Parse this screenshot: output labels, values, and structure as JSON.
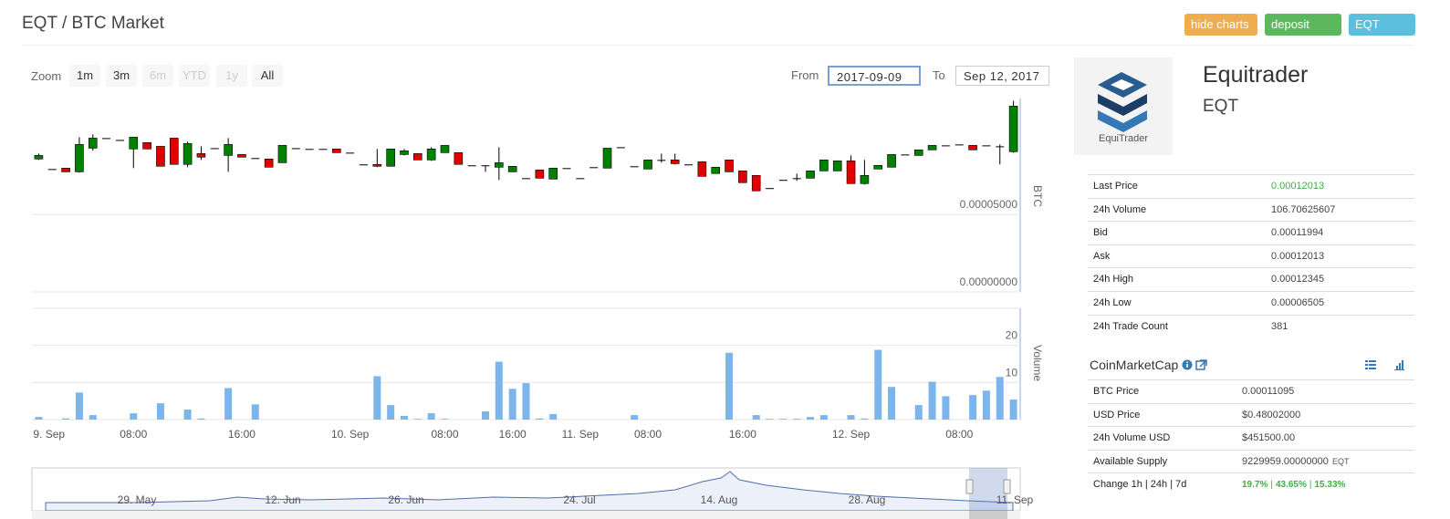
{
  "header": {
    "title": "EQT / BTC Market",
    "buttons": [
      "hide charts",
      "deposit EQT",
      "EQT peers"
    ]
  },
  "chart_controls": {
    "zoom_label": "Zoom",
    "zoom_buttons": [
      "1m",
      "3m",
      "6m",
      "YTD",
      "1y",
      "All"
    ],
    "from_label": "From",
    "from_value": "2017-09-09",
    "to_label": "To",
    "to_value": "Sep 12, 2017"
  },
  "chart_data": [
    {
      "type": "candlestick",
      "y_axis_title": "BTC",
      "up_color": "#008000",
      "down_color": "#e00000",
      "ylim": [
        0,
        0.000125
      ],
      "yticks": [
        {
          "value": 0,
          "label": "0.00000000"
        },
        {
          "value": 5e-05,
          "label": "0.00005000"
        }
      ],
      "open": [
        8.59e-05,
        7.94e-05,
        8e-05,
        7.76e-05,
        9.29e-05,
        9.94e-05,
        9.82e-05,
        9.24e-05,
        9.65e-05,
        9.41e-05,
        9.94e-05,
        8.24e-05,
        8.94e-05,
        9.29e-05,
        8.82e-05,
        8.88e-05,
        8.65e-05,
        8.59e-05,
        8.35e-05,
        9.29e-05,
        9.24e-05,
        9.24e-05,
        9.24e-05,
        9e-05,
        8.24e-05,
        8.24e-05,
        8.12e-05,
        8.88e-05,
        8.94e-05,
        8.53e-05,
        9e-05,
        9e-05,
        8.18e-05,
        8.18e-05,
        8.06e-05,
        7.76e-05,
        7.35e-05,
        7.88e-05,
        7.29e-05,
        8e-05,
        7.35e-05,
        8.06e-05,
        8e-05,
        9.35e-05,
        8.12e-05,
        7.94e-05,
        8.53e-05,
        8.53e-05,
        8.24e-05,
        8.41e-05,
        7.65e-05,
        8.53e-05,
        7.82e-05,
        7.53e-05,
        6.71e-05,
        7.24e-05,
        7.35e-05,
        7.35e-05,
        7.82e-05,
        7.82e-05,
        8.47e-05,
        7e-05,
        7.94e-05,
        8.06e-05,
        8.88e-05,
        8.82e-05,
        9.18e-05,
        9.47e-05,
        9.53e-05,
        9.47e-05,
        9.47e-05,
        9.41e-05,
        9.06e-05
      ],
      "high": [
        8.94e-05,
        7.94e-05,
        8e-05,
        0.0001,
        0.0001018,
        9.94e-05,
        9.82e-05,
        0.0001,
        9.65e-05,
        9.41e-05,
        9.94e-05,
        9.71e-05,
        9.41e-05,
        9.29e-05,
        9.94e-05,
        8.88e-05,
        8.65e-05,
        8.59e-05,
        9.47e-05,
        9.29e-05,
        9.24e-05,
        9.24e-05,
        9.24e-05,
        9e-05,
        8.24e-05,
        9.24e-05,
        9.24e-05,
        9.24e-05,
        8.94e-05,
        9.35e-05,
        9.47e-05,
        9e-05,
        8.18e-05,
        8.18e-05,
        9.35e-05,
        8.12e-05,
        7.35e-05,
        7.88e-05,
        8e-05,
        8e-05,
        7.35e-05,
        8.06e-05,
        9.29e-05,
        9.35e-05,
        8.12e-05,
        8.53e-05,
        8.94e-05,
        8.94e-05,
        8.24e-05,
        8.41e-05,
        8.06e-05,
        8.53e-05,
        7.82e-05,
        7.53e-05,
        6.71e-05,
        7.24e-05,
        7.65e-05,
        7.82e-05,
        8.53e-05,
        8.47e-05,
        8.82e-05,
        8.53e-05,
        8.18e-05,
        8.88e-05,
        8.88e-05,
        9.18e-05,
        9.47e-05,
        9.47e-05,
        9.53e-05,
        9.47e-05,
        9.47e-05,
        9.53e-05,
        0.0001235
      ],
      "low": [
        8.53e-05,
        7.94e-05,
        7.76e-05,
        7.71e-05,
        9.12e-05,
        9.94e-05,
        9.82e-05,
        8e-05,
        9.24e-05,
        8.12e-05,
        8.24e-05,
        8.06e-05,
        8.53e-05,
        9.29e-05,
        7.76e-05,
        8.71e-05,
        8.65e-05,
        8.06e-05,
        8.35e-05,
        9.29e-05,
        9.24e-05,
        9.24e-05,
        9e-05,
        9e-05,
        8.24e-05,
        8.06e-05,
        8.12e-05,
        8.82e-05,
        8.53e-05,
        8.47e-05,
        9e-05,
        8.24e-05,
        8.18e-05,
        7.76e-05,
        7.24e-05,
        7.76e-05,
        7.35e-05,
        7.35e-05,
        7.29e-05,
        8e-05,
        7.35e-05,
        8.06e-05,
        8e-05,
        9.35e-05,
        8.12e-05,
        7.94e-05,
        8.35e-05,
        8.24e-05,
        8.24e-05,
        7.47e-05,
        7.65e-05,
        7.76e-05,
        7.06e-05,
        6.53e-05,
        6.71e-05,
        7.24e-05,
        7.18e-05,
        7.35e-05,
        7.82e-05,
        7.82e-05,
        7e-05,
        6.94e-05,
        7.94e-05,
        8.06e-05,
        8.88e-05,
        8.82e-05,
        9.18e-05,
        9.47e-05,
        9.53e-05,
        9.18e-05,
        9.47e-05,
        8.24e-05,
        9e-05
      ],
      "close": [
        8.82e-05,
        7.94e-05,
        7.76e-05,
        9.53e-05,
        9.94e-05,
        9.94e-05,
        9.82e-05,
        0.0001,
        9.24e-05,
        8.12e-05,
        8.24e-05,
        9.59e-05,
        8.71e-05,
        9.29e-05,
        9.53e-05,
        8.71e-05,
        8.65e-05,
        8.06e-05,
        9.47e-05,
        9.29e-05,
        9.24e-05,
        9.24e-05,
        9e-05,
        9e-05,
        8.24e-05,
        8.12e-05,
        9.24e-05,
        9.12e-05,
        8.53e-05,
        9.24e-05,
        9.47e-05,
        8.24e-05,
        8.18e-05,
        8.18e-05,
        8.35e-05,
        8.12e-05,
        7.35e-05,
        7.35e-05,
        8e-05,
        8e-05,
        7.35e-05,
        8.06e-05,
        9.29e-05,
        9.35e-05,
        8.12e-05,
        8.53e-05,
        8.53e-05,
        8.29e-05,
        8.24e-05,
        7.47e-05,
        8.06e-05,
        7.76e-05,
        7.06e-05,
        6.53e-05,
        6.71e-05,
        7.24e-05,
        7.35e-05,
        7.82e-05,
        8.53e-05,
        8.47e-05,
        7e-05,
        7.53e-05,
        8.18e-05,
        8.88e-05,
        8.88e-05,
        9.18e-05,
        9.47e-05,
        9.47e-05,
        9.53e-05,
        9.18e-05,
        9.47e-05,
        9.41e-05,
        0.0001201
      ]
    },
    {
      "type": "bar",
      "y_axis_title": "Volume",
      "color": "#7cb5ec",
      "categories": [
        "9. Sep",
        null,
        null,
        null,
        null,
        null,
        null,
        "08:00",
        null,
        null,
        null,
        null,
        null,
        null,
        null,
        "16:00",
        null,
        null,
        null,
        null,
        null,
        null,
        null,
        "10. Sep",
        null,
        null,
        null,
        null,
        null,
        null,
        "08:00",
        null,
        null,
        null,
        null,
        "16:00",
        null,
        null,
        null,
        null,
        "11. Sep",
        null,
        null,
        null,
        null,
        "08:00",
        null,
        null,
        null,
        null,
        null,
        null,
        "16:00",
        null,
        null,
        null,
        null,
        null,
        null,
        null,
        "12. Sep",
        null,
        null,
        null,
        null,
        null,
        null,
        null,
        "08:00",
        null,
        null,
        null,
        null
      ],
      "values": [
        0.7,
        0,
        0.3,
        7.3,
        1.2,
        0,
        0,
        1.7,
        0,
        4.4,
        0,
        2.7,
        0.3,
        0,
        8.5,
        0,
        4.1,
        0,
        0,
        0,
        0,
        0,
        0,
        0,
        0,
        11.7,
        3.9,
        1,
        0.2,
        1.7,
        0.2,
        0,
        0,
        2.2,
        15.6,
        8.3,
        9.8,
        0.3,
        1.5,
        0,
        0,
        0,
        0,
        0,
        1.2,
        0,
        0,
        0,
        0,
        0,
        0,
        18,
        0,
        1.2,
        0.2,
        0.2,
        0.2,
        0.7,
        1.2,
        0,
        1.2,
        0.3,
        18.8,
        8.8,
        0,
        3.9,
        10.2,
        6.3,
        0,
        6.6,
        7.8,
        11.5,
        5.4
      ],
      "ylim": [
        0,
        30
      ],
      "yticks": [
        0,
        10,
        20
      ]
    }
  ],
  "navigator": {
    "xtick_labels": [
      "29. May",
      "12. Jun",
      "26. Jun",
      "24. Jul",
      "14. Aug",
      "28. Aug",
      "11. Sep"
    ]
  },
  "coin": {
    "logo_text": "EquiTrader",
    "name": "Equitrader",
    "symbol": "EQT"
  },
  "market_stats": {
    "rows": [
      {
        "label": "Last Price",
        "value": "0.00012013"
      },
      {
        "label": "24h Volume",
        "value": "106.70625607"
      },
      {
        "label": "Bid",
        "value": "0.00011994"
      },
      {
        "label": "Ask",
        "value": "0.00012013"
      },
      {
        "label": "24h High",
        "value": "0.00012345"
      },
      {
        "label": "24h Low",
        "value": "0.00006505"
      },
      {
        "label": "24h Trade Count",
        "value": "381"
      }
    ]
  },
  "coinmarketcap": {
    "title": "CoinMarketCap",
    "rows": [
      {
        "label": "BTC Price",
        "value": "0.00011095"
      },
      {
        "label": "USD Price",
        "value": "$0.48002000"
      },
      {
        "label": "24h Volume USD",
        "value": "$451500.00"
      },
      {
        "label": "Available Supply",
        "value": "9229959.00000000",
        "unit": "EQT"
      }
    ],
    "change": {
      "label": "Change 1h | 24h | 7d",
      "values": [
        "19.7%",
        "43.65%",
        "15.33%"
      ],
      "separator": "|"
    }
  }
}
